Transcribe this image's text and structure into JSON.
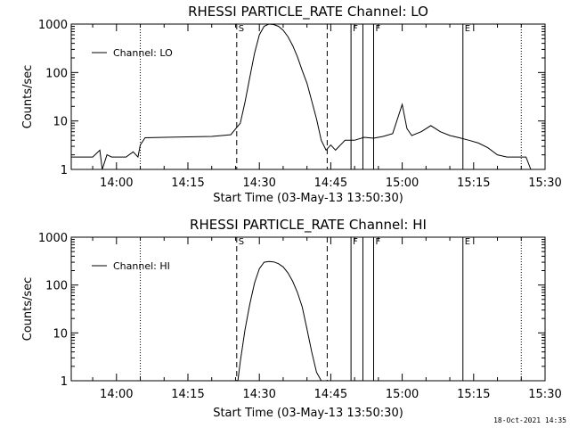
{
  "chart_data": [
    {
      "type": "line",
      "title": "RHESSI PARTICLE_RATE Channel: LO",
      "xlabel": "Start Time (03-May-13 13:50:30)",
      "ylabel": "Counts/sec",
      "yscale": "log",
      "xlim": [
        "13:50:30",
        "15:30:00"
      ],
      "ylim": [
        1,
        1000
      ],
      "xticks": [
        "14:00",
        "14:15",
        "14:30",
        "14:45",
        "15:00",
        "15:15",
        "15:30"
      ],
      "yticks": [
        "1",
        "10",
        "100",
        "1000"
      ],
      "legend": "Channel: LO",
      "legend_position": "top-left",
      "markers": [
        {
          "label": "S",
          "time": "14:25:15",
          "style": "dashed"
        },
        {
          "label": "",
          "time": "14:44:15",
          "style": "dashed"
        },
        {
          "label": "",
          "time": "14:05:00",
          "style": "dotted"
        },
        {
          "label": "F",
          "time": "14:49:15",
          "style": "solid"
        },
        {
          "label": "",
          "time": "14:51:45",
          "style": "solid"
        },
        {
          "label": "F",
          "time": "14:54:00",
          "style": "solid"
        },
        {
          "label": "E",
          "time": "15:12:45",
          "style": "solid"
        },
        {
          "label": "",
          "time": "15:25:00",
          "style": "dotted"
        }
      ],
      "series": [
        {
          "name": "Channel: LO",
          "x": [
            "13:50:30",
            "13:53:00",
            "13:55:00",
            "13:56:30",
            "13:57:00",
            "13:58:00",
            "13:59:00",
            "14:00:00",
            "14:02:00",
            "14:03:30",
            "14:04:30",
            "14:05:00",
            "14:06:00",
            "14:10:00",
            "14:15:00",
            "14:20:00",
            "14:24:00",
            "14:26:00",
            "14:27:00",
            "14:28:00",
            "14:29:00",
            "14:30:00",
            "14:31:00",
            "14:32:00",
            "14:33:00",
            "14:34:00",
            "14:35:00",
            "14:36:00",
            "14:37:00",
            "14:38:00",
            "14:39:00",
            "14:40:00",
            "14:41:00",
            "14:42:00",
            "14:43:00",
            "14:44:00",
            "14:45:00",
            "14:46:00",
            "14:48:00",
            "14:50:00",
            "14:52:00",
            "14:54:00",
            "14:56:00",
            "14:58:00",
            "15:00:00",
            "15:01:00",
            "15:02:00",
            "15:04:00",
            "15:06:00",
            "15:08:00",
            "15:10:00",
            "15:12:00",
            "15:14:00",
            "15:16:00",
            "15:18:00",
            "15:20:00",
            "15:22:00",
            "15:24:00",
            "15:26:00",
            "15:27:00",
            "15:28:00"
          ],
          "values": [
            1.8,
            1.8,
            1.8,
            2.5,
            1.0,
            2.0,
            1.8,
            1.8,
            1.8,
            2.3,
            1.8,
            3.2,
            4.5,
            4.6,
            4.7,
            4.8,
            5.2,
            9,
            25,
            80,
            250,
            600,
            900,
            1000,
            980,
            900,
            750,
            550,
            360,
            210,
            110,
            60,
            26,
            11,
            4,
            2.5,
            3.2,
            2.5,
            4.0,
            4.0,
            4.6,
            4.4,
            4.8,
            5.5,
            22,
            7,
            5,
            6,
            8,
            6,
            5,
            4.5,
            4,
            3.5,
            2.8,
            2,
            1.8,
            1.8,
            1.8,
            1.0,
            1.0
          ]
        }
      ]
    },
    {
      "type": "line",
      "title": "RHESSI PARTICLE_RATE Channel: HI",
      "xlabel": "Start Time (03-May-13 13:50:30)",
      "ylabel": "Counts/sec",
      "yscale": "log",
      "xlim": [
        "13:50:30",
        "15:30:00"
      ],
      "ylim": [
        1,
        1000
      ],
      "xticks": [
        "14:00",
        "14:15",
        "14:30",
        "14:45",
        "15:00",
        "15:15",
        "15:30"
      ],
      "yticks": [
        "1",
        "10",
        "100",
        "1000"
      ],
      "legend": "Channel: HI",
      "legend_position": "top-left",
      "markers": [
        {
          "label": "S",
          "time": "14:25:15",
          "style": "dashed"
        },
        {
          "label": "",
          "time": "14:44:15",
          "style": "dashed"
        },
        {
          "label": "",
          "time": "14:05:00",
          "style": "dotted"
        },
        {
          "label": "F",
          "time": "14:49:15",
          "style": "solid"
        },
        {
          "label": "",
          "time": "14:51:45",
          "style": "solid"
        },
        {
          "label": "F",
          "time": "14:54:00",
          "style": "solid"
        },
        {
          "label": "E",
          "time": "15:12:45",
          "style": "solid"
        },
        {
          "label": "",
          "time": "15:25:00",
          "style": "dotted"
        }
      ],
      "series": [
        {
          "name": "Channel: HI",
          "x": [
            "14:25:30",
            "14:26:00",
            "14:27:00",
            "14:28:00",
            "14:29:00",
            "14:30:00",
            "14:31:00",
            "14:32:00",
            "14:33:00",
            "14:34:00",
            "14:35:00",
            "14:36:00",
            "14:37:00",
            "14:38:00",
            "14:39:00",
            "14:40:00",
            "14:41:00",
            "14:42:00",
            "14:43:00"
          ],
          "values": [
            1,
            2.5,
            12,
            40,
            110,
            220,
            300,
            310,
            305,
            280,
            240,
            180,
            120,
            70,
            35,
            12,
            4,
            1.5,
            1
          ]
        }
      ]
    }
  ],
  "timestamp": "18-Oct-2021 14:35"
}
